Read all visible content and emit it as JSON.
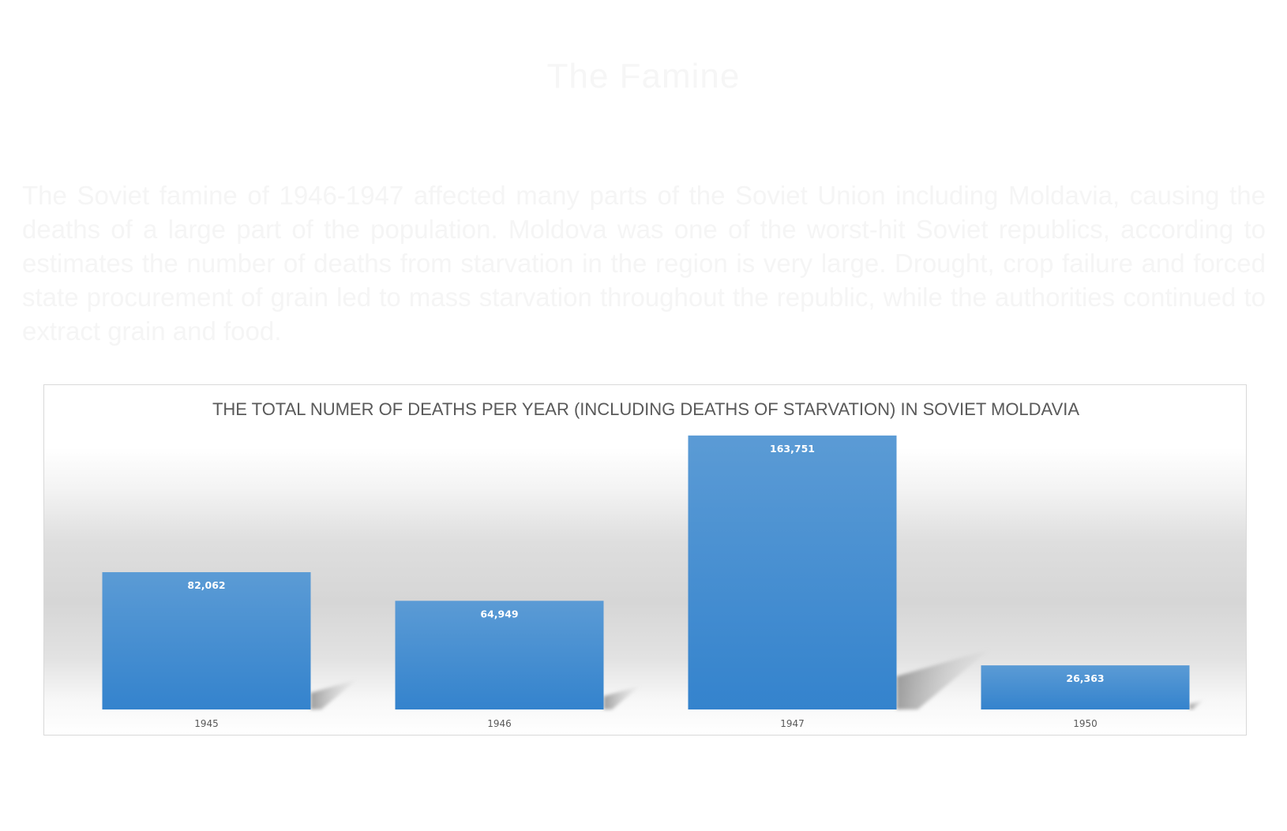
{
  "slide": {
    "title": "The Famine",
    "body": "The Soviet famine of 1946-1947 affected many parts of the Soviet Union including Moldavia, causing the deaths of a large part of the population. Moldova was one of the worst-hit Soviet republics, according to estimates the number of deaths from starvation in the region is very large. Drought, crop failure and forced state procurement of grain led to mass starvation throughout the republic, while the authorities continued to extract grain and food."
  },
  "chart_data": {
    "type": "bar",
    "title": "THE TOTAL NUMER OF DEATHS PER YEAR (INCLUDING DEATHS OF STARVATION) IN SOVIET MOLDAVIA",
    "categories": [
      "1945",
      "1946",
      "1947",
      "1950"
    ],
    "values": [
      82062,
      64949,
      163751,
      26363
    ],
    "value_labels": [
      "82,062",
      "64,949",
      "163,751",
      "26,363"
    ],
    "xlabel": "",
    "ylabel": "",
    "ylim": [
      0,
      175000
    ],
    "grid": false,
    "legend": "none",
    "colors": {
      "bar_top": "#5b9bd5",
      "bar_bottom": "#3483cd",
      "shadow": "#8c8c8c"
    }
  }
}
